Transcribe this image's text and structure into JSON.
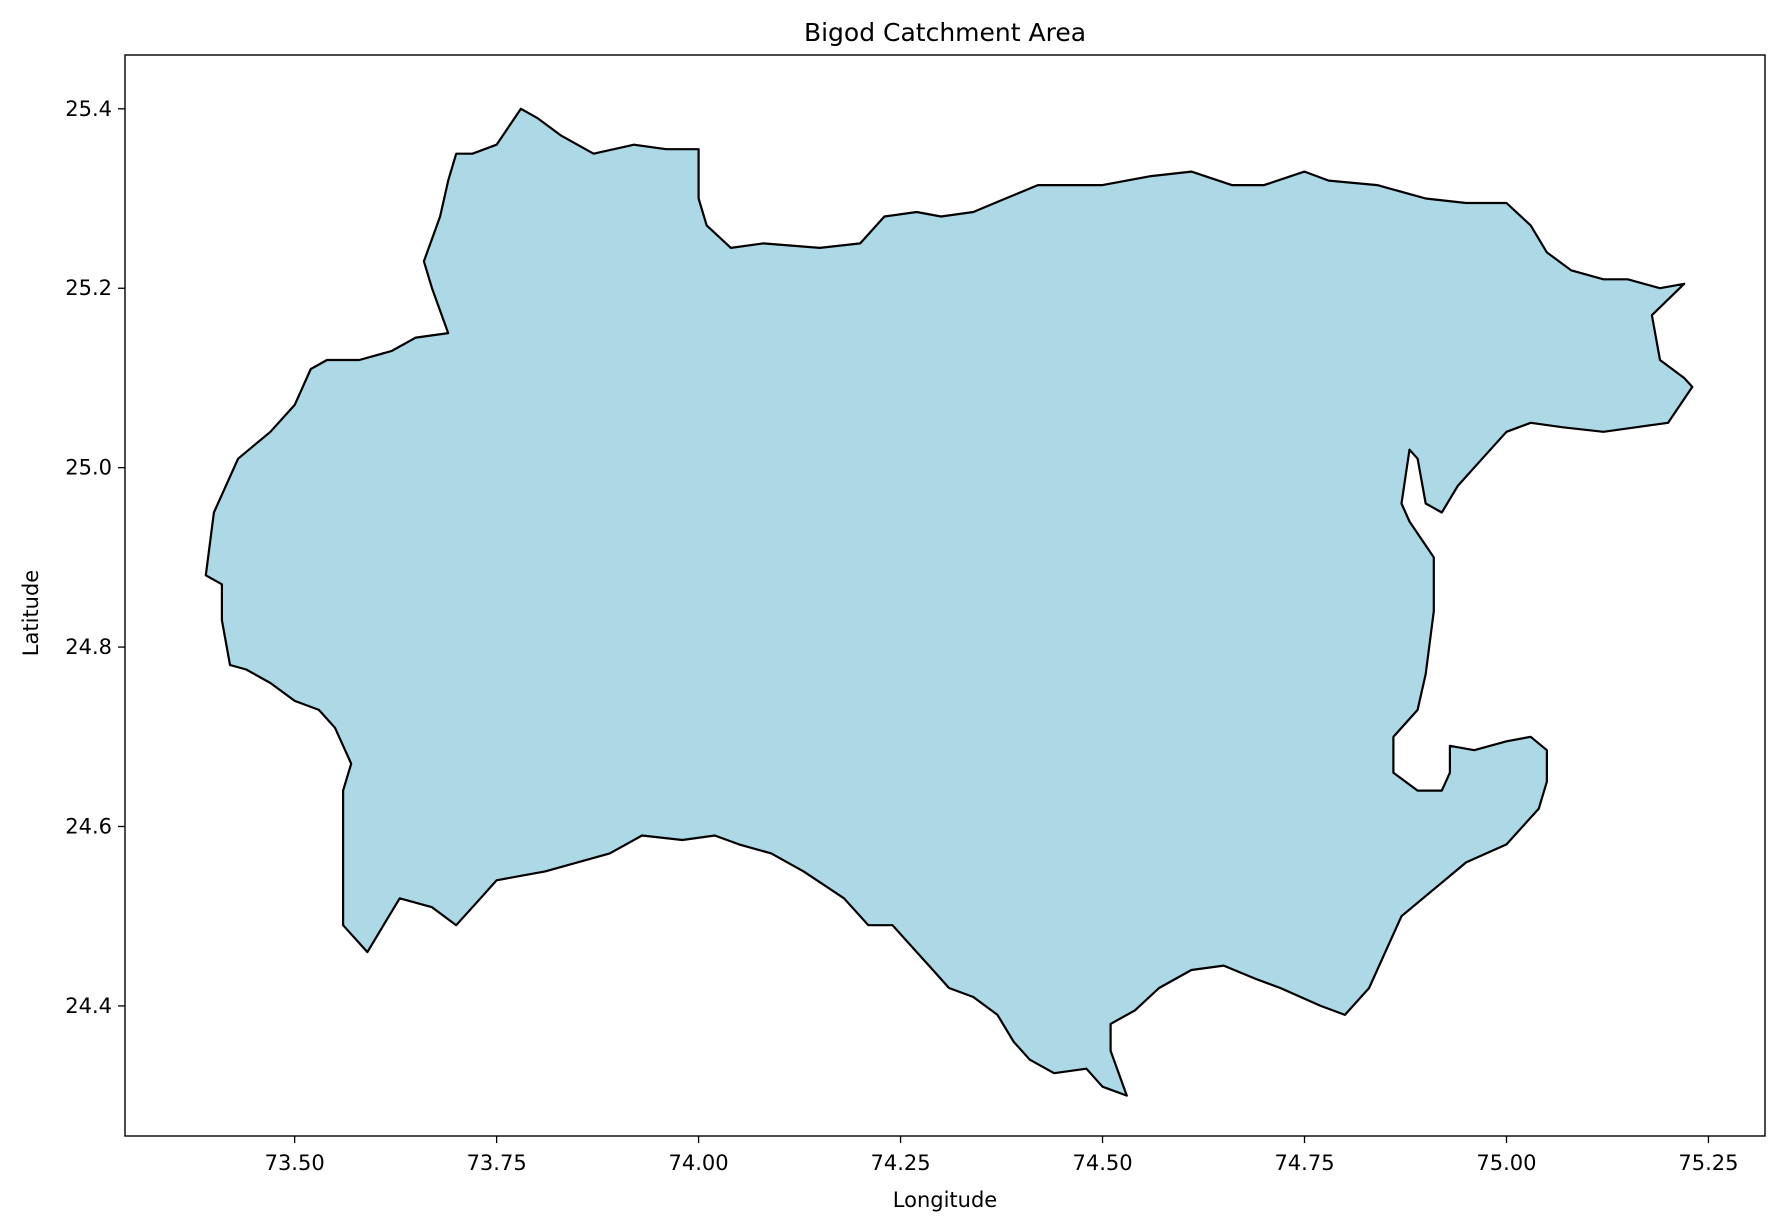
{
  "chart_data": {
    "type": "map",
    "title": "Bigod Catchment Area",
    "xlabel": "Longitude",
    "ylabel": "Latitude",
    "xlim": [
      73.29,
      75.32
    ],
    "ylim": [
      24.255,
      25.46
    ],
    "xticks": [
      73.5,
      73.75,
      74.0,
      74.25,
      74.5,
      74.75,
      75.0,
      75.25
    ],
    "xtick_labels": [
      "73.50",
      "73.75",
      "74.00",
      "74.25",
      "74.50",
      "74.75",
      "75.00",
      "75.25"
    ],
    "yticks": [
      24.4,
      24.6,
      24.8,
      25.0,
      25.2,
      25.4
    ],
    "ytick_labels": [
      "24.4",
      "24.6",
      "24.8",
      "25.0",
      "25.2",
      "25.4"
    ],
    "grid": false,
    "fill_color": "#add8e6",
    "edge_color": "#000000",
    "boundary": [
      [
        73.39,
        24.88
      ],
      [
        73.4,
        24.95
      ],
      [
        73.43,
        25.01
      ],
      [
        73.47,
        25.04
      ],
      [
        73.5,
        25.07
      ],
      [
        73.52,
        25.11
      ],
      [
        73.54,
        25.12
      ],
      [
        73.58,
        25.12
      ],
      [
        73.62,
        25.13
      ],
      [
        73.65,
        25.145
      ],
      [
        73.69,
        25.15
      ],
      [
        73.67,
        25.2
      ],
      [
        73.66,
        25.23
      ],
      [
        73.68,
        25.28
      ],
      [
        73.69,
        25.32
      ],
      [
        73.7,
        25.35
      ],
      [
        73.72,
        25.35
      ],
      [
        73.75,
        25.36
      ],
      [
        73.78,
        25.4
      ],
      [
        73.8,
        25.39
      ],
      [
        73.83,
        25.37
      ],
      [
        73.87,
        25.35
      ],
      [
        73.92,
        25.36
      ],
      [
        73.96,
        25.355
      ],
      [
        74.0,
        25.355
      ],
      [
        74.0,
        25.3
      ],
      [
        74.01,
        25.27
      ],
      [
        74.04,
        25.245
      ],
      [
        74.08,
        25.25
      ],
      [
        74.15,
        25.245
      ],
      [
        74.2,
        25.25
      ],
      [
        74.23,
        25.28
      ],
      [
        74.27,
        25.285
      ],
      [
        74.3,
        25.28
      ],
      [
        74.34,
        25.285
      ],
      [
        74.38,
        25.3
      ],
      [
        74.42,
        25.315
      ],
      [
        74.5,
        25.315
      ],
      [
        74.56,
        25.325
      ],
      [
        74.61,
        25.33
      ],
      [
        74.66,
        25.315
      ],
      [
        74.7,
        25.315
      ],
      [
        74.75,
        25.33
      ],
      [
        74.78,
        25.32
      ],
      [
        74.84,
        25.315
      ],
      [
        74.9,
        25.3
      ],
      [
        74.95,
        25.295
      ],
      [
        75.0,
        25.295
      ],
      [
        75.03,
        25.27
      ],
      [
        75.05,
        25.24
      ],
      [
        75.08,
        25.22
      ],
      [
        75.12,
        25.21
      ],
      [
        75.15,
        25.21
      ],
      [
        75.19,
        25.2
      ],
      [
        75.22,
        25.205
      ],
      [
        75.18,
        25.17
      ],
      [
        75.19,
        25.12
      ],
      [
        75.22,
        25.1
      ],
      [
        75.23,
        25.09
      ],
      [
        75.2,
        25.05
      ],
      [
        75.16,
        25.045
      ],
      [
        75.12,
        25.04
      ],
      [
        75.07,
        25.045
      ],
      [
        75.03,
        25.05
      ],
      [
        75.0,
        25.04
      ],
      [
        74.97,
        25.01
      ],
      [
        74.94,
        24.98
      ],
      [
        74.92,
        24.95
      ],
      [
        74.9,
        24.96
      ],
      [
        74.89,
        25.01
      ],
      [
        74.88,
        25.02
      ],
      [
        74.87,
        24.96
      ],
      [
        74.88,
        24.94
      ],
      [
        74.91,
        24.9
      ],
      [
        74.91,
        24.84
      ],
      [
        74.9,
        24.77
      ],
      [
        74.89,
        24.73
      ],
      [
        74.86,
        24.7
      ],
      [
        74.86,
        24.66
      ],
      [
        74.89,
        24.64
      ],
      [
        74.92,
        24.64
      ],
      [
        74.93,
        24.66
      ],
      [
        74.93,
        24.69
      ],
      [
        74.96,
        24.685
      ],
      [
        75.0,
        24.695
      ],
      [
        75.03,
        24.7
      ],
      [
        75.05,
        24.685
      ],
      [
        75.05,
        24.65
      ],
      [
        75.04,
        24.62
      ],
      [
        75.0,
        24.58
      ],
      [
        74.95,
        24.56
      ],
      [
        74.91,
        24.53
      ],
      [
        74.87,
        24.5
      ],
      [
        74.85,
        24.46
      ],
      [
        74.83,
        24.42
      ],
      [
        74.8,
        24.39
      ],
      [
        74.77,
        24.4
      ],
      [
        74.72,
        24.42
      ],
      [
        74.69,
        24.43
      ],
      [
        74.65,
        24.445
      ],
      [
        74.61,
        24.44
      ],
      [
        74.57,
        24.42
      ],
      [
        74.54,
        24.395
      ],
      [
        74.51,
        24.38
      ],
      [
        74.51,
        24.35
      ],
      [
        74.53,
        24.3
      ],
      [
        74.5,
        24.31
      ],
      [
        74.48,
        24.33
      ],
      [
        74.44,
        24.325
      ],
      [
        74.41,
        24.34
      ],
      [
        74.39,
        24.36
      ],
      [
        74.37,
        24.39
      ],
      [
        74.34,
        24.41
      ],
      [
        74.31,
        24.42
      ],
      [
        74.29,
        24.44
      ],
      [
        74.26,
        24.47
      ],
      [
        74.24,
        24.49
      ],
      [
        74.21,
        24.49
      ],
      [
        74.18,
        24.52
      ],
      [
        74.13,
        24.55
      ],
      [
        74.09,
        24.57
      ],
      [
        74.05,
        24.58
      ],
      [
        74.02,
        24.59
      ],
      [
        73.98,
        24.585
      ],
      [
        73.93,
        24.59
      ],
      [
        73.89,
        24.57
      ],
      [
        73.85,
        24.56
      ],
      [
        73.81,
        24.55
      ],
      [
        73.78,
        24.545
      ],
      [
        73.75,
        24.54
      ],
      [
        73.73,
        24.52
      ],
      [
        73.7,
        24.49
      ],
      [
        73.67,
        24.51
      ],
      [
        73.63,
        24.52
      ],
      [
        73.61,
        24.49
      ],
      [
        73.59,
        24.46
      ],
      [
        73.56,
        24.49
      ],
      [
        73.56,
        24.55
      ],
      [
        73.56,
        24.64
      ],
      [
        73.57,
        24.67
      ],
      [
        73.55,
        24.71
      ],
      [
        73.53,
        24.73
      ],
      [
        73.5,
        24.74
      ],
      [
        73.47,
        24.76
      ],
      [
        73.44,
        24.775
      ],
      [
        73.42,
        24.78
      ],
      [
        73.41,
        24.83
      ],
      [
        73.41,
        24.87
      ],
      [
        73.39,
        24.88
      ]
    ]
  }
}
